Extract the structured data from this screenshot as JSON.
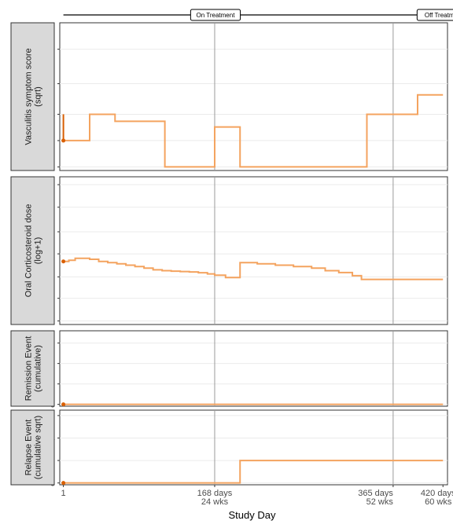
{
  "timeline": {
    "labels": [
      {
        "text": "On Treatment",
        "day": 168
      },
      {
        "text": "Off Treatment",
        "day": 420
      }
    ]
  },
  "x_axis": {
    "title": "Study Day",
    "ticks": [
      {
        "day": 1,
        "lines": [
          "1"
        ]
      },
      {
        "day": 168,
        "lines": [
          "168 days",
          "24 wks"
        ]
      },
      {
        "day": 365,
        "lines": [
          "365 days",
          "52 wks"
        ]
      },
      {
        "day": 420,
        "lines": [
          "420 days",
          "60 wks"
        ]
      }
    ]
  },
  "reference_days": [
    168,
    365
  ],
  "colors": {
    "line": "#f4a35f",
    "start_marker": "#d95f02"
  },
  "chart_data": [
    {
      "type": "line",
      "strip_label": [
        "Vasculitis symptom score",
        "(sqrt)"
      ],
      "scale": "sqrt",
      "ylim": [
        0,
        30
      ],
      "y_ticks": [
        0,
        1,
        4,
        10,
        20
      ],
      "x_range": [
        -3,
        425
      ],
      "step": true,
      "start_segment": {
        "day": 1,
        "from": 4,
        "to": 1
      },
      "x": [
        1,
        30,
        30,
        58,
        58,
        113,
        113,
        168,
        168,
        196,
        196,
        336,
        336,
        392,
        392,
        420
      ],
      "y": [
        1,
        1,
        4,
        4,
        3,
        3,
        0,
        0,
        2.3,
        2.3,
        0,
        0,
        4,
        4,
        7.5,
        7.5
      ]
    },
    {
      "type": "line",
      "strip_label": [
        "Oral Corticosteroid dose",
        "(log+1)"
      ],
      "scale": "log+1",
      "ylim": [
        0,
        1100
      ],
      "y_ticks": [
        0,
        2,
        7.5,
        25,
        75,
        250,
        750
      ],
      "x_range": [
        -3,
        425
      ],
      "step": true,
      "start_point": {
        "day": 1,
        "value": 17
      },
      "x": [
        1,
        7,
        7,
        14,
        14,
        30,
        30,
        40,
        40,
        50,
        50,
        60,
        60,
        70,
        70,
        80,
        80,
        90,
        90,
        100,
        100,
        110,
        110,
        120,
        120,
        130,
        130,
        140,
        140,
        150,
        150,
        160,
        160,
        168,
        168,
        180,
        180,
        196,
        196,
        215,
        215,
        235,
        235,
        255,
        255,
        275,
        275,
        290,
        290,
        305,
        305,
        320,
        320,
        330,
        330,
        420
      ],
      "y": [
        17,
        17,
        18,
        18,
        20,
        20,
        19,
        19,
        17,
        17,
        16,
        16,
        15,
        15,
        14,
        14,
        13,
        13,
        12,
        12,
        11,
        11,
        10.5,
        10.5,
        10.2,
        10.2,
        10,
        10,
        9.8,
        9.8,
        9.4,
        9.4,
        8.8,
        8.8,
        8.2,
        8.2,
        7.2,
        7.2,
        16,
        16,
        15,
        15,
        14,
        14,
        13,
        13,
        12,
        12,
        10.5,
        10.5,
        9.5,
        9.5,
        8,
        8,
        6.5,
        6.5
      ]
    },
    {
      "type": "line",
      "strip_label": [
        "Remission Event",
        "(cumulative)"
      ],
      "scale": "linear",
      "ylim": [
        0,
        360
      ],
      "y_ticks": [
        0,
        100,
        200,
        300
      ],
      "x_range": [
        -3,
        425
      ],
      "step": true,
      "start_point": {
        "day": 1,
        "value": 0
      },
      "x": [
        1,
        420
      ],
      "y": [
        0,
        0
      ]
    },
    {
      "type": "line",
      "strip_label": [
        "Relapse Event",
        "(cumulative sqrt)"
      ],
      "scale": "sqrt",
      "ylim": [
        0,
        10.5
      ],
      "y_ticks": [
        0,
        1,
        4,
        9
      ],
      "x_range": [
        -3,
        425
      ],
      "step": true,
      "start_point": {
        "day": 1,
        "value": 0
      },
      "x": [
        1,
        196,
        196,
        420
      ],
      "y": [
        0,
        0,
        1,
        1
      ]
    }
  ]
}
